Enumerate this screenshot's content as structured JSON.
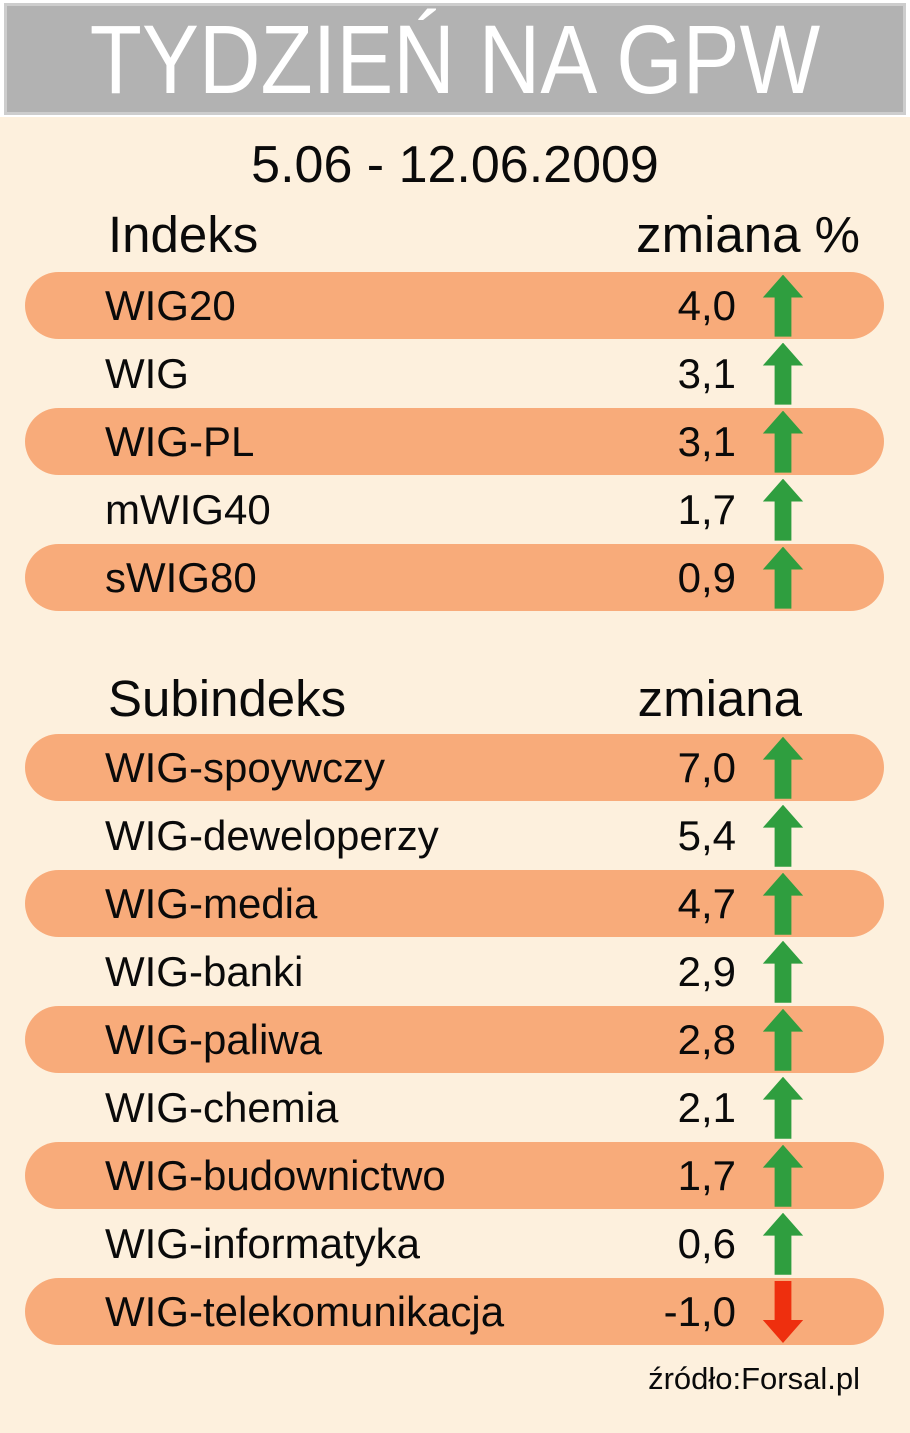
{
  "title": "TYDZIEŃ NA GPW",
  "date_range": "5.06 - 12.06.2009",
  "source": "źródło:Forsal.pl",
  "colors": {
    "background": "#fdf0dd",
    "banner_fill": "#b2b2b2",
    "banner_border": "#cdcdcd",
    "banner_text": "#ffffff",
    "stripe_orange": "#f8ab7a",
    "up_arrow_green": "#2f9e3f",
    "down_arrow_red": "#ee2f0e",
    "text": "#0a0a0a"
  },
  "index_table": {
    "name_header": "Indeks",
    "change_header": "zmiana %",
    "rows": [
      {
        "label": "WIG20",
        "value": "4,0",
        "direction": "up"
      },
      {
        "label": "WIG",
        "value": "3,1",
        "direction": "up"
      },
      {
        "label": "WIG-PL",
        "value": "3,1",
        "direction": "up"
      },
      {
        "label": "mWIG40",
        "value": "1,7",
        "direction": "up"
      },
      {
        "label": "sWIG80",
        "value": "0,9",
        "direction": "up"
      }
    ]
  },
  "subindex_table": {
    "name_header": "Subindeks",
    "change_header": "zmiana",
    "rows": [
      {
        "label": "WIG-spoywczy",
        "value": "7,0",
        "direction": "up"
      },
      {
        "label": "WIG-deweloperzy",
        "value": "5,4",
        "direction": "up"
      },
      {
        "label": "WIG-media",
        "value": "4,7",
        "direction": "up"
      },
      {
        "label": "WIG-banki",
        "value": "2,9",
        "direction": "up"
      },
      {
        "label": "WIG-paliwa",
        "value": "2,8",
        "direction": "up"
      },
      {
        "label": "WIG-chemia",
        "value": "2,1",
        "direction": "up"
      },
      {
        "label": "WIG-budownictwo",
        "value": "1,7",
        "direction": "up"
      },
      {
        "label": "WIG-informatyka",
        "value": "0,6",
        "direction": "up"
      },
      {
        "label": "WIG-telekomunikacja",
        "value": "-1,0",
        "direction": "down"
      }
    ]
  },
  "chart_data": [
    {
      "type": "table",
      "title": "Indeks — zmiana % (5.06 - 12.06.2009)",
      "categories": [
        "WIG20",
        "WIG",
        "WIG-PL",
        "mWIG40",
        "sWIG80"
      ],
      "values": [
        4.0,
        3.1,
        3.1,
        1.7,
        0.9
      ],
      "xlabel": "Indeks",
      "ylabel": "zmiana %"
    },
    {
      "type": "table",
      "title": "Subindeks — zmiana (5.06 - 12.06.2009)",
      "categories": [
        "WIG-spoywczy",
        "WIG-deweloperzy",
        "WIG-media",
        "WIG-banki",
        "WIG-paliwa",
        "WIG-chemia",
        "WIG-budownictwo",
        "WIG-informatyka",
        "WIG-telekomunikacja"
      ],
      "values": [
        7.0,
        5.4,
        4.7,
        2.9,
        2.8,
        2.1,
        1.7,
        0.6,
        -1.0
      ],
      "xlabel": "Subindeks",
      "ylabel": "zmiana"
    }
  ]
}
